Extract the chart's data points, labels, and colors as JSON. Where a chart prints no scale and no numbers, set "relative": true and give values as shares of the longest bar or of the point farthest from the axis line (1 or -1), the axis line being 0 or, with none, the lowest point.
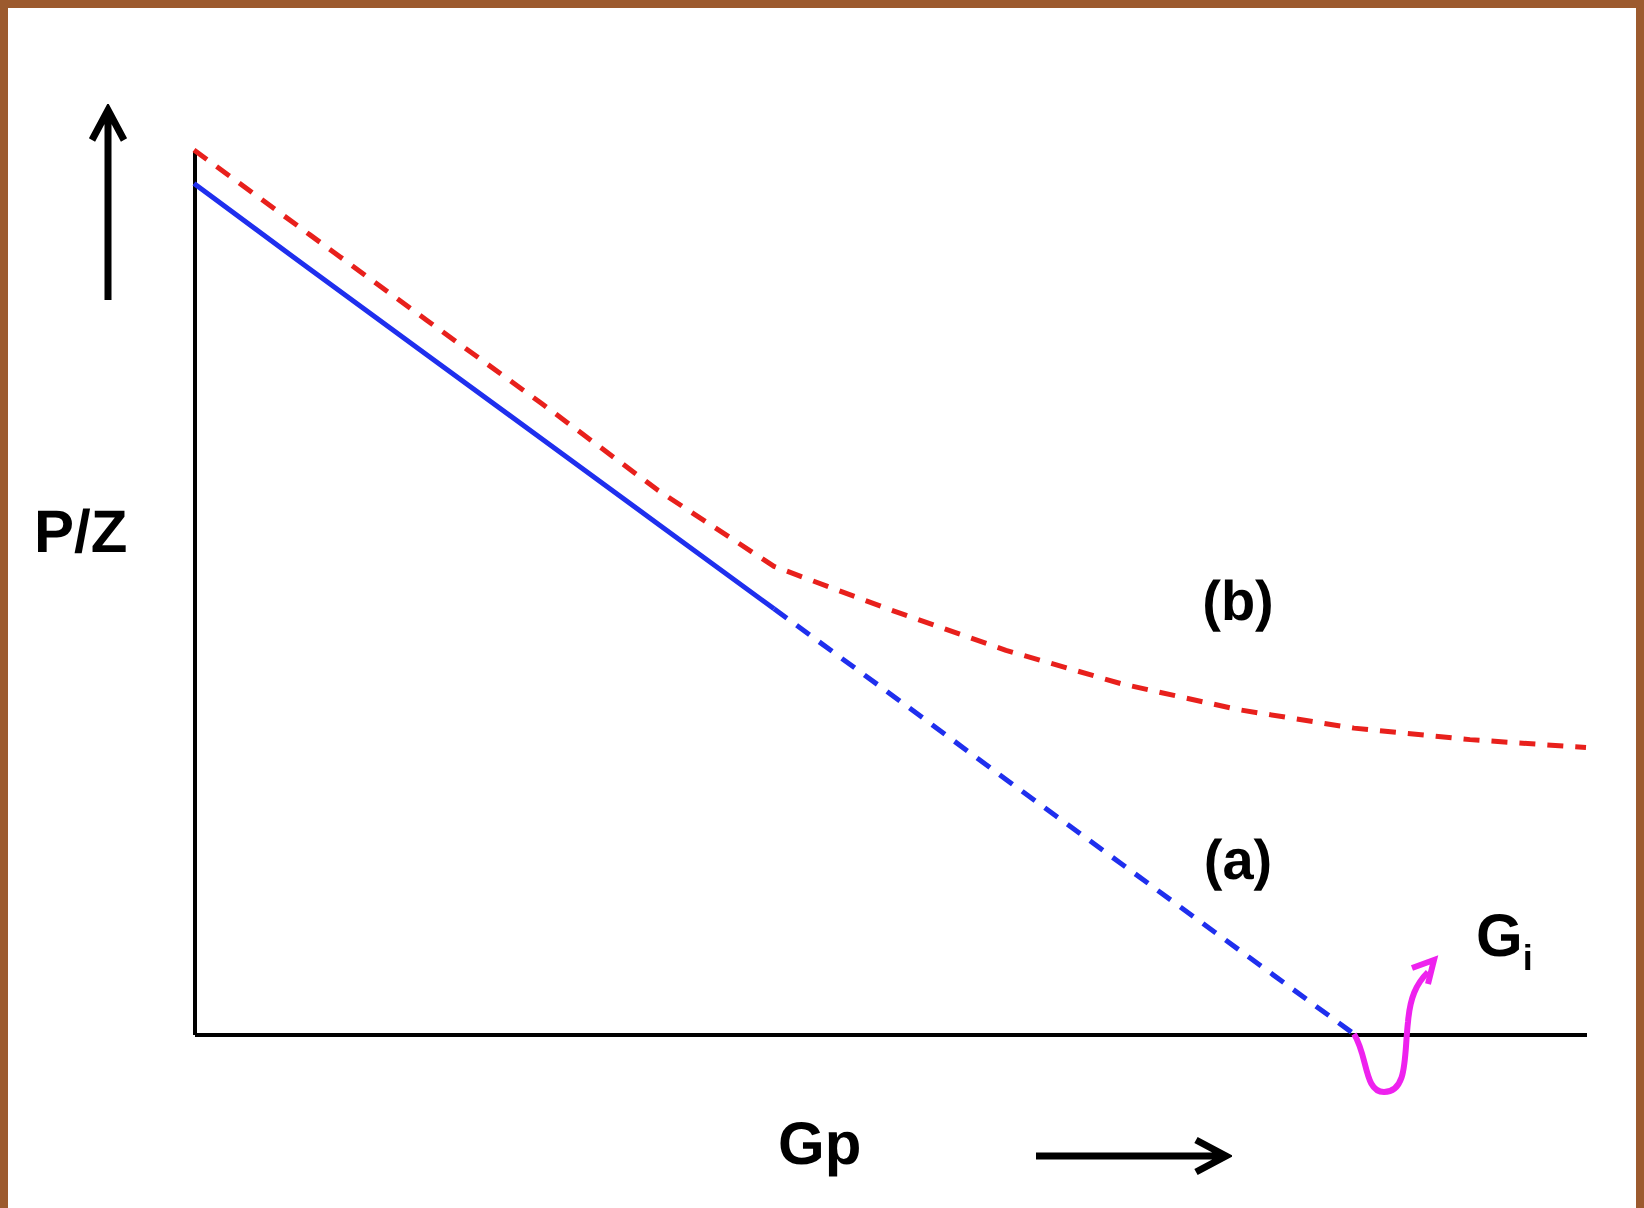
{
  "chart_data": {
    "type": "line",
    "relative": true,
    "xlabel": "Gp",
    "ylabel": "P/Z",
    "categories": [
      null,
      null,
      null,
      null,
      null,
      null,
      null,
      null,
      null,
      null,
      null,
      null,
      null
    ],
    "series": [
      {
        "color": "#1f2fee",
        "line_style": "solid",
        "values": [
          0.962,
          0.865,
          0.769,
          0.673,
          0.577,
          0.481,
          null,
          null,
          null,
          null,
          null,
          null,
          null
        ]
      },
      {
        "name": "(a)",
        "color": "#1f2fee",
        "line_style": "dashed",
        "values": [
          null,
          null,
          null,
          null,
          null,
          0.481,
          0.385,
          0.288,
          0.192,
          0.096,
          0,
          null,
          null
        ]
      },
      {
        "name": "(b)",
        "color": "#e8201c",
        "line_style": "dashed",
        "values": [
          1,
          0.904,
          0.808,
          0.713,
          0.615,
          0.529,
          0.48,
          0.434,
          0.396,
          0.367,
          0.346,
          0.333,
          0.324
        ]
      }
    ],
    "annotations": [
      "G$_{i}$"
    ],
    "grid": false,
    "marker": "none"
  }
}
